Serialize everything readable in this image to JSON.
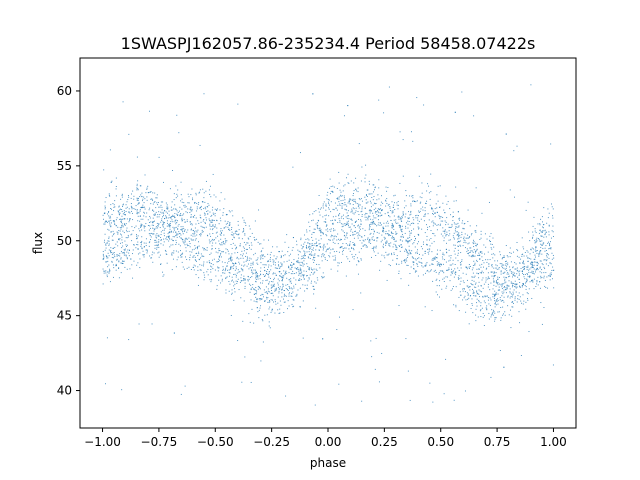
{
  "chart_data": {
    "type": "scatter",
    "title": "1SWASPJ162057.86-235234.4 Period 58458.07422s",
    "xlabel": "phase",
    "ylabel": "flux",
    "xlim": [
      -1.1,
      1.1
    ],
    "ylim": [
      37.5,
      62.2
    ],
    "xticks": [
      -1.0,
      -0.75,
      -0.5,
      -0.25,
      0.0,
      0.25,
      0.5,
      0.75,
      1.0
    ],
    "xtick_labels": [
      "−1.00",
      "−0.75",
      "−0.50",
      "−0.25",
      "0.00",
      "0.25",
      "0.50",
      "0.75",
      "1.00"
    ],
    "yticks": [
      40,
      45,
      50,
      55,
      60
    ],
    "ytick_labels": [
      "40",
      "45",
      "50",
      "55",
      "60"
    ],
    "grid": false,
    "point_color": "#1f77b4",
    "series": [
      {
        "x_range": [
          -1.0,
          1.0
        ],
        "upper_band": {
          "x": [
            -1.0,
            -0.85,
            -0.7,
            -0.55,
            -0.4,
            -0.25,
            -0.15,
            0.0,
            0.15,
            0.3,
            0.45,
            0.6,
            0.75,
            0.85,
            1.0
          ],
          "y": [
            51.0,
            52.5,
            51.5,
            52.0,
            50.0,
            48.0,
            48.0,
            52.0,
            52.5,
            51.5,
            52.0,
            50.0,
            48.0,
            48.0,
            51.0
          ]
        },
        "lower_band": {
          "x": [
            -1.0,
            -0.85,
            -0.7,
            -0.55,
            -0.4,
            -0.3,
            -0.2,
            -0.05,
            0.1,
            0.25,
            0.4,
            0.55,
            0.7,
            0.8,
            0.95,
            1.0
          ],
          "y": [
            48.5,
            50.0,
            50.5,
            49.0,
            48.0,
            46.0,
            46.5,
            49.0,
            50.0,
            50.5,
            49.0,
            48.0,
            46.0,
            46.5,
            48.5,
            48.5
          ]
        }
      }
    ]
  }
}
